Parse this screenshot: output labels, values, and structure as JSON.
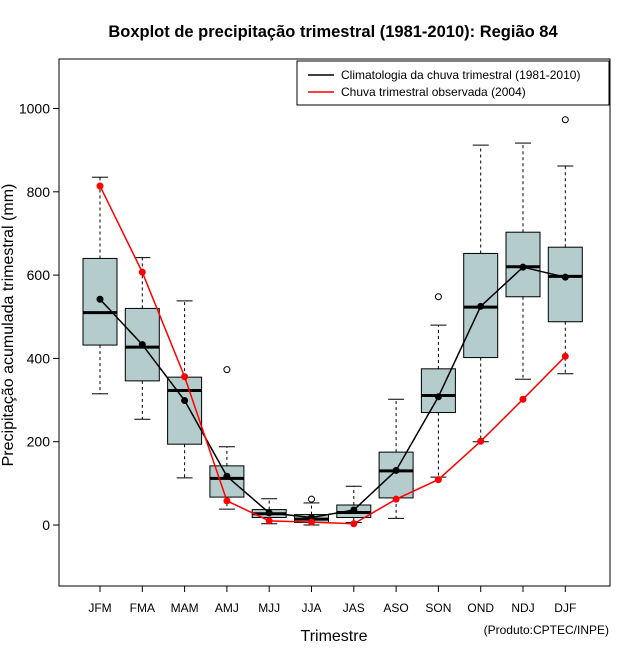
{
  "chart_data": {
    "type": "boxplot",
    "title": "Boxplot de precipitação trimestral (1981-2010): Região 84",
    "xlabel": "Trimestre",
    "ylabel": "Precipitação acumulada trimestral (mm)",
    "credit": "(Produto:CPTEC/INPE)",
    "ylim": [
      -150,
      1120
    ],
    "yticks": [
      0,
      200,
      400,
      600,
      800,
      1000
    ],
    "categories": [
      "JFM",
      "FMA",
      "MAM",
      "AMJ",
      "MJJ",
      "JJA",
      "JAS",
      "ASO",
      "SON",
      "OND",
      "NDJ",
      "DJF"
    ],
    "boxes": [
      {
        "min": 315,
        "q1": 432,
        "median": 510,
        "q3": 640,
        "max": 835,
        "outliers": []
      },
      {
        "min": 254,
        "q1": 346,
        "median": 427,
        "q3": 520,
        "max": 642,
        "outliers": []
      },
      {
        "min": 113,
        "q1": 194,
        "median": 323,
        "q3": 355,
        "max": 538,
        "outliers": []
      },
      {
        "min": 38,
        "q1": 67,
        "median": 112,
        "q3": 142,
        "max": 188,
        "outliers": [
          373
        ]
      },
      {
        "min": 3,
        "q1": 18,
        "median": 27,
        "q3": 37,
        "max": 63,
        "outliers": []
      },
      {
        "min": 0,
        "q1": 6,
        "median": 14,
        "q3": 25,
        "max": 53,
        "outliers": [
          62
        ]
      },
      {
        "min": 6,
        "q1": 18,
        "median": 30,
        "q3": 48,
        "max": 93,
        "outliers": []
      },
      {
        "min": 16,
        "q1": 65,
        "median": 130,
        "q3": 175,
        "max": 302,
        "outliers": []
      },
      {
        "min": 115,
        "q1": 270,
        "median": 311,
        "q3": 375,
        "max": 480,
        "outliers": [
          548
        ]
      },
      {
        "min": 200,
        "q1": 402,
        "median": 523,
        "q3": 652,
        "max": 912,
        "outliers": []
      },
      {
        "min": 350,
        "q1": 548,
        "median": 620,
        "q3": 703,
        "max": 917,
        "outliers": []
      },
      {
        "min": 363,
        "q1": 488,
        "median": 597,
        "q3": 667,
        "max": 862,
        "outliers": [
          973
        ]
      }
    ],
    "series": [
      {
        "name": "Climatologia da chuva trimestral (1981-2010)",
        "color": "#000000",
        "values": [
          542,
          433,
          299,
          117,
          29,
          18,
          36,
          131,
          308,
          525,
          619,
          595
        ]
      },
      {
        "name": "Chuva trimestral observada (2004)",
        "color": "#ff0000",
        "values": [
          814,
          607,
          356,
          58,
          10,
          7,
          3,
          62,
          109,
          201,
          302,
          405
        ]
      }
    ],
    "legend_position": "top-right",
    "box_fill": "#b4cccc"
  }
}
